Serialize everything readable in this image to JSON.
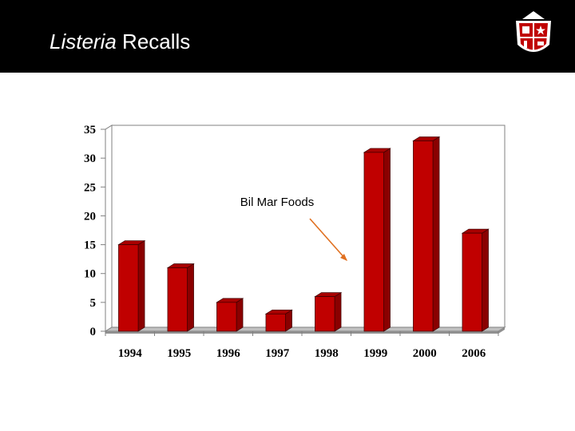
{
  "slide": {
    "title_italic": "Listeria",
    "title_rest": " Recalls"
  },
  "colors": {
    "header_bg": "#000000",
    "bar_front": "#c00000",
    "bar_side": "#8a0000",
    "bar_top": "#a80000",
    "annotation_arrow": "#e07020"
  },
  "chart_data": {
    "type": "bar",
    "style": "3d",
    "categories": [
      "1994",
      "1995",
      "1996",
      "1997",
      "1998",
      "1999",
      "2000",
      "2006"
    ],
    "values": [
      15,
      11,
      5,
      3,
      6,
      31,
      33,
      17
    ],
    "yticks": [
      "0",
      "5",
      "10",
      "15",
      "20",
      "25",
      "30",
      "35"
    ],
    "ylim": [
      0,
      35
    ],
    "grid": true,
    "legend": "none",
    "annotation": {
      "text": "Bil Mar Foods",
      "points_to": "1999"
    }
  }
}
